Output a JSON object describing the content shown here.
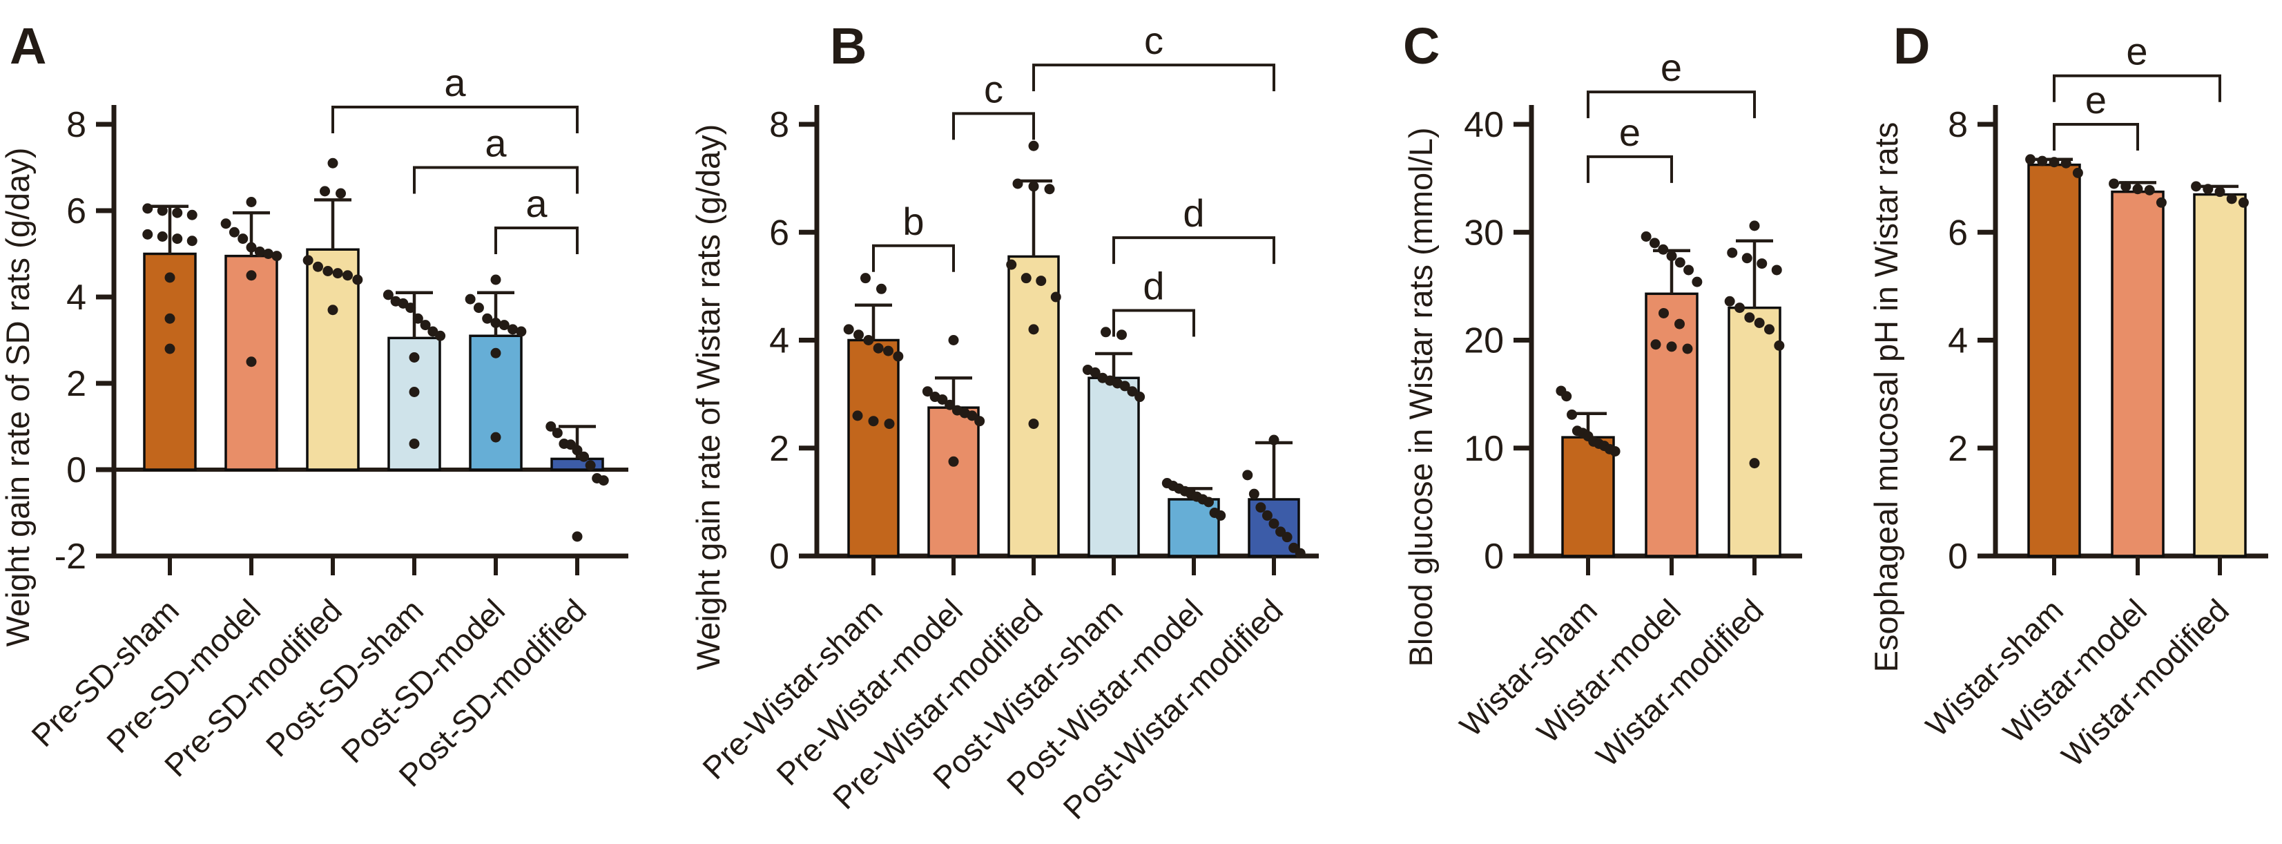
{
  "figure": {
    "background_color": "#ffffff",
    "ink_color": "#231b15",
    "bar_outline_color": "#0d0d0d"
  },
  "chart_data": [
    {
      "panel_letter": "A",
      "type": "bar",
      "y_label": "Weight gain rate of SD rats (g/day)",
      "y_min": -2,
      "y_max": 8,
      "y_ticks": [
        -2,
        0,
        2,
        4,
        6,
        8
      ],
      "grid": "off",
      "categories": [
        "Pre-SD-sham",
        "Pre-SD-model",
        "Pre-SD-modified",
        "Post-SD-sham",
        "Post-SD-model",
        "Post-SD-modified"
      ],
      "bar_colors": [
        "#c2661c",
        "#e88e68",
        "#f3dda0",
        "#cfe3ea",
        "#66aed6",
        "#3c5ca8"
      ],
      "means": [
        5.0,
        4.95,
        5.1,
        3.05,
        3.1,
        0.25
      ],
      "error_tops": [
        6.1,
        5.95,
        6.25,
        4.1,
        4.1,
        1.0
      ],
      "points": [
        [
          6.05,
          6.0,
          5.95,
          5.9,
          5.45,
          5.4,
          5.35,
          5.3,
          4.45,
          3.5,
          2.8
        ],
        [
          6.2,
          5.7,
          5.5,
          5.35,
          5.15,
          5.05,
          5.0,
          4.95,
          4.5,
          2.5
        ],
        [
          7.1,
          6.45,
          6.4,
          4.85,
          4.7,
          4.6,
          4.55,
          4.5,
          4.4,
          3.7
        ],
        [
          4.05,
          3.9,
          3.85,
          3.75,
          3.5,
          3.35,
          3.2,
          3.1,
          2.6,
          1.8,
          0.6
        ],
        [
          4.4,
          3.95,
          3.75,
          3.5,
          3.4,
          3.35,
          3.25,
          3.2,
          2.7,
          0.75
        ],
        [
          1.0,
          0.85,
          0.6,
          0.58,
          0.45,
          0.3,
          0.1,
          -0.2,
          -0.25,
          -1.55
        ]
      ],
      "brackets": [
        {
          "from": 2,
          "to": 5,
          "label": "a",
          "height": 8.4
        },
        {
          "from": 3,
          "to": 5,
          "label": "a",
          "height": 7.0
        },
        {
          "from": 4,
          "to": 5,
          "label": "a",
          "height": 5.6
        }
      ]
    },
    {
      "panel_letter": "B",
      "type": "bar",
      "y_label": "Weight gain rate of Wistar rats (g/day)",
      "y_min": 0,
      "y_max": 8,
      "y_ticks": [
        0,
        2,
        4,
        6,
        8
      ],
      "grid": "off",
      "categories": [
        "Pre-Wistar-sham",
        "Pre-Wistar-model",
        "Pre-Wistar-modified",
        "Post-Wistar-sham",
        "Post-Wistar-model",
        "Post-Wistar-modified"
      ],
      "bar_colors": [
        "#c2661c",
        "#e88e68",
        "#f3dda0",
        "#cfe3ea",
        "#66aed6",
        "#3c5ca8"
      ],
      "means": [
        4.0,
        2.75,
        5.55,
        3.3,
        1.05,
        1.05
      ],
      "error_tops": [
        4.65,
        3.3,
        6.95,
        3.75,
        1.25,
        2.1
      ],
      "points": [
        [
          5.15,
          4.95,
          4.2,
          4.1,
          4.0,
          3.85,
          3.8,
          3.7,
          2.6,
          2.5,
          2.45
        ],
        [
          4.0,
          3.05,
          2.95,
          2.9,
          2.8,
          2.7,
          2.65,
          2.6,
          2.5,
          1.75
        ],
        [
          7.6,
          6.9,
          6.85,
          6.8,
          5.4,
          5.15,
          5.1,
          4.8,
          4.2,
          2.45
        ],
        [
          4.15,
          4.1,
          3.45,
          3.4,
          3.3,
          3.25,
          3.2,
          3.15,
          3.05,
          2.95
        ],
        [
          1.35,
          1.3,
          1.25,
          1.2,
          1.15,
          1.1,
          1.05,
          1.0,
          0.8,
          0.75
        ],
        [
          2.15,
          1.5,
          1.15,
          0.9,
          0.75,
          0.6,
          0.45,
          0.35,
          0.15,
          0.05
        ]
      ],
      "brackets": [
        {
          "from": 0,
          "to": 1,
          "label": "b",
          "height": 5.75
        },
        {
          "from": 1,
          "to": 2,
          "label": "c",
          "height": 8.2
        },
        {
          "from": 2,
          "to": 5,
          "label": "c",
          "height": 9.1
        },
        {
          "from": 3,
          "to": 5,
          "label": "d",
          "height": 5.9
        },
        {
          "from": 3,
          "to": 4,
          "label": "d",
          "height": 4.55
        }
      ]
    },
    {
      "panel_letter": "C",
      "type": "bar",
      "y_label": "Blood glucose in Wistar rats (mmol/L)",
      "y_min": 0,
      "y_max": 40,
      "y_ticks": [
        0,
        10,
        20,
        30,
        40
      ],
      "grid": "off",
      "categories": [
        "Wistar-sham",
        "Wistar-model",
        "Wistar-modified"
      ],
      "bar_colors": [
        "#c2661c",
        "#e88e68",
        "#f3dda0"
      ],
      "means": [
        11.0,
        24.3,
        23.0
      ],
      "error_tops": [
        13.2,
        28.3,
        29.2
      ],
      "points": [
        [
          15.3,
          14.8,
          13.1,
          11.6,
          11.4,
          11.1,
          10.6,
          10.4,
          10.2,
          9.9,
          9.7
        ],
        [
          29.6,
          29.0,
          28.4,
          27.8,
          27.2,
          26.5,
          25.4,
          22.5,
          21.5,
          19.6,
          19.4,
          19.2
        ],
        [
          30.6,
          28.1,
          27.6,
          27.1,
          26.5,
          23.6,
          23.0,
          22.1,
          21.6,
          21.0,
          19.5,
          8.6
        ]
      ],
      "brackets": [
        {
          "from": 0,
          "to": 1,
          "label": "e",
          "height": 37
        },
        {
          "from": 0,
          "to": 2,
          "label": "e",
          "height": 43
        }
      ]
    },
    {
      "panel_letter": "D",
      "type": "bar",
      "y_label": "Esophageal mucosal pH in Wistar rats",
      "y_min": 0,
      "y_max": 8,
      "y_ticks": [
        0,
        2,
        4,
        6,
        8
      ],
      "grid": "off",
      "categories": [
        "Wistar-sham",
        "Wistar-model",
        "Wistar-modified"
      ],
      "bar_colors": [
        "#c2661c",
        "#e88e68",
        "#f3dda0"
      ],
      "means": [
        7.25,
        6.75,
        6.7
      ],
      "error_tops": [
        7.35,
        6.92,
        6.85
      ],
      "points": [
        [
          7.35,
          7.32,
          7.3,
          7.28,
          7.1
        ],
        [
          6.9,
          6.85,
          6.8,
          6.78,
          6.55
        ],
        [
          6.85,
          6.8,
          6.75,
          6.62,
          6.55
        ]
      ],
      "brackets": [
        {
          "from": 0,
          "to": 1,
          "label": "e",
          "height": 8.0
        },
        {
          "from": 0,
          "to": 2,
          "label": "e",
          "height": 8.9
        }
      ]
    }
  ]
}
